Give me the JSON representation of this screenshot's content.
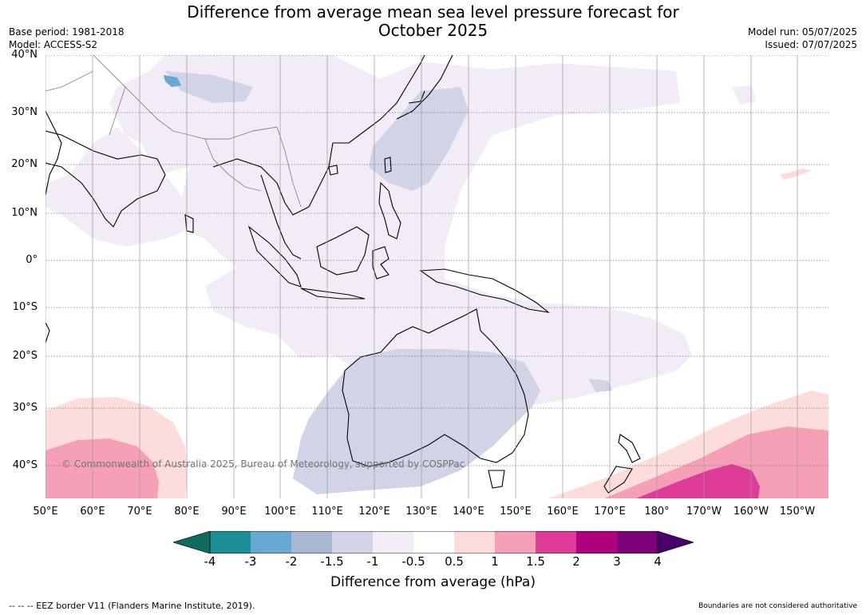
{
  "title_line1": "Difference from average mean sea level pressure forecast for",
  "title_line2": "October 2025",
  "base_period": "Base period: 1981-2018",
  "model": "Model: ACCESS-S2",
  "model_run": "Model run: 05/07/2025",
  "issued": "Issued: 07/07/2025",
  "lat_labels": [
    "40°N",
    "30°N",
    "20°N",
    "10°N",
    "0°",
    "10°S",
    "20°S",
    "30°S",
    "40°S"
  ],
  "lon_labels": [
    "50°E",
    "60°E",
    "70°E",
    "80°E",
    "90°E",
    "100°E",
    "110°E",
    "120°E",
    "130°E",
    "140°E",
    "150°E",
    "160°E",
    "170°E",
    "180°",
    "170°W",
    "160°W",
    "150°W"
  ],
  "copyright": "© Commonwealth of Australia 2025, Bureau of Meteorology, supported by COSPPac",
  "colorbar": {
    "ticks": [
      "-4",
      "-3",
      "-2",
      "-1.5",
      "-1",
      "-0.5",
      "0.5",
      "1",
      "1.5",
      "2",
      "3",
      "4"
    ],
    "colors": [
      "#0e6b5e",
      "#1b8e96",
      "#67a9d2",
      "#a9b7d3",
      "#d1d3e7",
      "#f1ecf5",
      "#ffffff",
      "#fddcdc",
      "#f6a0b8",
      "#de3c98",
      "#b0007e",
      "#7c007a",
      "#4a006a"
    ],
    "label": "Difference from average (hPa)"
  },
  "footer_left": "--  --  -- EEZ border V11 (Flanders Marine Institute, 2019).",
  "footer_right": "Boundaries are not considered authoritative"
}
